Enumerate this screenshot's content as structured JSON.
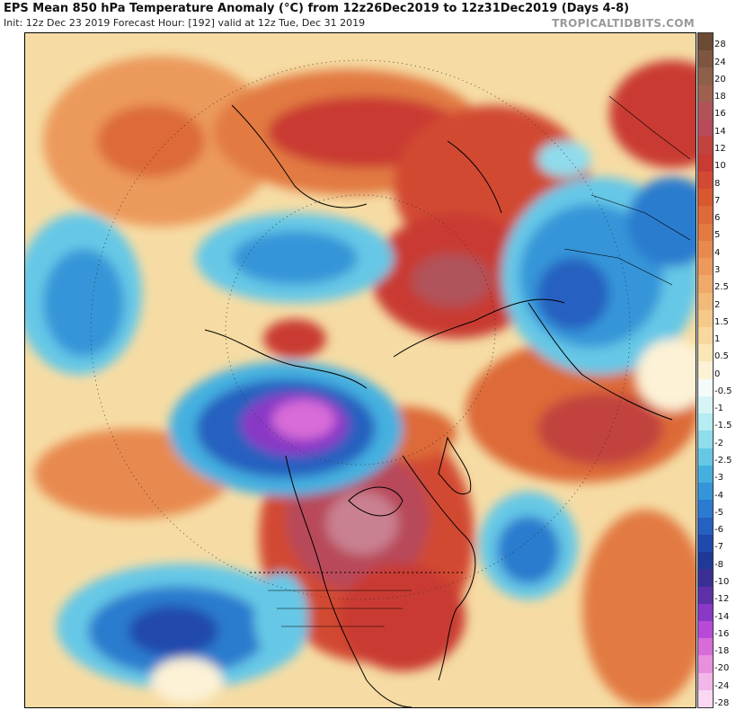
{
  "header": {
    "title": "EPS Mean 850 hPa Temperature Anomaly (°C) from 12z26Dec2019 to 12z31Dec2019 (Days 4-8)",
    "subtitle": "Init: 12z Dec 23 2019   Forecast Hour: [192]   valid at 12z Tue, Dec 31 2019",
    "brand": "TROPICALTIDBITS.COM"
  },
  "map": {
    "projection": "north-polar-stereographic",
    "variable": "850 hPa temperature anomaly",
    "units": "°C"
  },
  "colorbar": {
    "labels": [
      "28",
      "24",
      "20",
      "18",
      "16",
      "14",
      "12",
      "10",
      "8",
      "7",
      "6",
      "5",
      "4",
      "3",
      "2.5",
      "2",
      "1.5",
      "1",
      "0.5",
      "0",
      "-0.5",
      "-1",
      "-1.5",
      "-2",
      "-2.5",
      "-3",
      "-4",
      "-5",
      "-6",
      "-7",
      "-8",
      "-10",
      "-12",
      "-14",
      "-16",
      "-18",
      "-20",
      "-24",
      "-28"
    ],
    "colors": [
      "#6b4a33",
      "#7e5640",
      "#8e5f49",
      "#a06050",
      "#b0525a",
      "#b84a5a",
      "#c2423e",
      "#c93a33",
      "#d24a33",
      "#d8582f",
      "#dd6a38",
      "#e27a42",
      "#e88a50",
      "#ec9a5c",
      "#efaa6a",
      "#f2ba78",
      "#f5c98a",
      "#f8d89e",
      "#fbe6b6",
      "#fdf2d6",
      "#f4fbfb",
      "#d6f4f6",
      "#b6ecf2",
      "#8fdcec",
      "#66c8e6",
      "#45b0e0",
      "#3595d8",
      "#2b7bce",
      "#2561c0",
      "#2049ad",
      "#203898",
      "#3a2f93",
      "#5e30a8",
      "#8a38c6",
      "#b84ad8",
      "#d86cd8",
      "#e890de",
      "#f2b6e8",
      "#fad8f2"
    ]
  }
}
